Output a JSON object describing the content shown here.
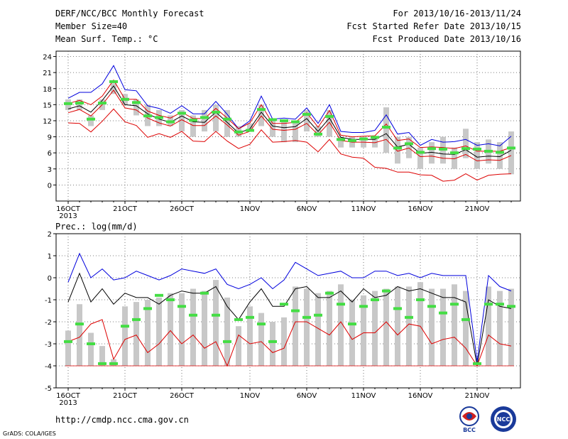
{
  "header": {
    "title": "DERF/NCC/BCC Monthly Forecast",
    "member_size": "Member Size=40",
    "variable": "Mean Surf. Temp.: °C",
    "period": "For 2013/10/16-2013/11/24",
    "fcst_started": "Fcst Started Refer Date 2013/10/15",
    "fcst_produced": "Fcst Produced Date 2013/10/16"
  },
  "footer": {
    "url": "http://cmdp.ncc.cma.gov.cn",
    "credit": "GrADS: COLA/IGES",
    "logo_left": "BCC",
    "logo_right": "NCC"
  },
  "colors": {
    "max_line": "#0000dd",
    "mean_line": "#000000",
    "min_line": "#dd0000",
    "spread_bar": "#c8c8c8",
    "observed_marker": "#44dd44",
    "grid": "#555555"
  },
  "chart_data": [
    {
      "type": "line",
      "title": "Mean Surf. Temp.: °C",
      "x": [
        "2013-10-16",
        "2013-10-17",
        "2013-10-18",
        "2013-10-19",
        "2013-10-20",
        "2013-10-21",
        "2013-10-22",
        "2013-10-23",
        "2013-10-24",
        "2013-10-25",
        "2013-10-26",
        "2013-10-27",
        "2013-10-28",
        "2013-10-29",
        "2013-10-30",
        "2013-10-31",
        "2013-11-01",
        "2013-11-02",
        "2013-11-03",
        "2013-11-04",
        "2013-11-05",
        "2013-11-06",
        "2013-11-07",
        "2013-11-08",
        "2013-11-09",
        "2013-11-10",
        "2013-11-11",
        "2013-11-12",
        "2013-11-13",
        "2013-11-14",
        "2013-11-15",
        "2013-11-16",
        "2013-11-17",
        "2013-11-18",
        "2013-11-19",
        "2013-11-20",
        "2013-11-21",
        "2013-11-22",
        "2013-11-23",
        "2013-11-24"
      ],
      "x_ticks": [
        {
          "label": "16OCT",
          "sublabel": "2013",
          "index": 0
        },
        {
          "label": "21OCT",
          "index": 5
        },
        {
          "label": "26OCT",
          "index": 10
        },
        {
          "label": "1NOV",
          "index": 16
        },
        {
          "label": "6NOV",
          "index": 21
        },
        {
          "label": "11NOV",
          "index": 26
        },
        {
          "label": "16NOV",
          "index": 31
        },
        {
          "label": "21NOV",
          "index": 36
        }
      ],
      "ylim": [
        -3,
        25
      ],
      "yticks": [
        0,
        3,
        6,
        9,
        12,
        15,
        18,
        21,
        24
      ],
      "grid": true,
      "series": [
        {
          "role": "max",
          "values": [
            16.2,
            17.3,
            17.3,
            18.9,
            22.3,
            17.8,
            17.6,
            14.8,
            14.3,
            13.4,
            14.8,
            13.3,
            13.3,
            15.6,
            13.2,
            10.5,
            12.0,
            16.6,
            12.3,
            12.5,
            12.3,
            14.4,
            11.5,
            15.0,
            10.0,
            9.8,
            9.8,
            10.2,
            13.1,
            9.5,
            9.8,
            7.4,
            8.5,
            8.0,
            8.1,
            8.5,
            7.4,
            7.7,
            7.3,
            9.1
          ]
        },
        {
          "role": "upper",
          "values": [
            15.2,
            15.8,
            15.0,
            16.6,
            19.6,
            16.0,
            16.0,
            13.8,
            13.0,
            12.5,
            13.6,
            12.4,
            12.4,
            14.3,
            12.5,
            10.5,
            11.6,
            15.0,
            11.5,
            11.5,
            11.7,
            13.5,
            10.8,
            13.9,
            9.3,
            9.0,
            9.1,
            9.2,
            11.4,
            8.3,
            8.6,
            7.0,
            7.1,
            7.0,
            6.8,
            7.3,
            6.3,
            6.3,
            6.3,
            7.0
          ]
        },
        {
          "role": "mean",
          "values": [
            14.2,
            14.8,
            13.6,
            15.8,
            18.5,
            15.0,
            14.8,
            13.3,
            12.3,
            11.7,
            12.9,
            11.8,
            11.7,
            13.6,
            11.7,
            9.7,
            10.5,
            13.6,
            11.0,
            10.7,
            10.9,
            12.4,
            10.0,
            12.5,
            8.9,
            8.5,
            8.5,
            8.5,
            9.6,
            7.1,
            7.6,
            5.9,
            6.1,
            5.8,
            5.7,
            6.6,
            5.2,
            5.4,
            5.3,
            6.5
          ]
        },
        {
          "role": "lower",
          "values": [
            13.5,
            14.1,
            12.9,
            15.0,
            17.7,
            14.4,
            14.0,
            12.5,
            11.6,
            11.0,
            12.2,
            11.1,
            11.1,
            12.9,
            11.2,
            9.3,
            10.0,
            12.9,
            10.4,
            10.2,
            10.4,
            11.5,
            9.4,
            11.7,
            8.3,
            8.0,
            8.0,
            7.9,
            8.5,
            6.3,
            6.9,
            5.3,
            5.4,
            5.0,
            4.9,
            5.7,
            4.5,
            4.7,
            4.6,
            5.5
          ]
        },
        {
          "role": "min",
          "values": [
            11.6,
            11.5,
            9.9,
            11.9,
            14.2,
            11.8,
            11.1,
            8.9,
            9.6,
            8.9,
            10.0,
            8.2,
            8.1,
            10.0,
            8.2,
            6.8,
            7.6,
            10.3,
            8.0,
            8.1,
            8.3,
            8.0,
            6.2,
            8.5,
            5.8,
            5.2,
            5.0,
            3.3,
            3.1,
            2.4,
            2.4,
            1.9,
            1.8,
            0.7,
            0.9,
            2.1,
            0.9,
            1.8,
            2.0,
            2.1
          ]
        }
      ],
      "spread_bars": {
        "low": [
          14.0,
          14.0,
          11.0,
          14.0,
          17.0,
          15.0,
          13.0,
          11.0,
          11.0,
          11.0,
          10.0,
          9.0,
          10.0,
          10.0,
          9.0,
          9.0,
          10.0,
          11.0,
          9.0,
          8.0,
          8.0,
          10.0,
          9.0,
          9.0,
          7.0,
          7.0,
          7.0,
          7.0,
          6.0,
          4.0,
          5.0,
          3.0,
          4.0,
          4.0,
          3.0,
          5.0,
          3.0,
          4.0,
          3.0,
          2.0
        ],
        "high": [
          16.0,
          16.0,
          13.0,
          16.0,
          19.0,
          17.0,
          16.0,
          15.0,
          14.0,
          13.0,
          14.0,
          13.0,
          14.0,
          15.0,
          14.0,
          11.0,
          11.5,
          15.0,
          12.0,
          12.0,
          12.0,
          14.0,
          11.0,
          14.0,
          9.0,
          9.0,
          9.0,
          9.0,
          14.5,
          9.0,
          9.0,
          7.0,
          8.0,
          9.0,
          7.0,
          10.5,
          8.0,
          8.5,
          8.0,
          10.0
        ]
      },
      "observed": [
        15.2,
        15.3,
        12.3,
        15.3,
        19.3,
        16.0,
        15.4,
        12.9,
        12.6,
        11.8,
        13.4,
        12.1,
        12.6,
        13.6,
        12.3,
        9.9,
        10.2,
        14.1,
        12.2,
        12.0,
        11.8,
        13.2,
        9.5,
        12.8,
        8.5,
        8.3,
        8.6,
        8.9,
        10.8,
        6.9,
        7.7,
        6.1,
        6.8,
        6.7,
        6.0,
        6.8,
        6.7,
        6.3,
        6.1,
        6.9
      ]
    },
    {
      "type": "line",
      "title": "Prec.: log(mm/d)",
      "x_ticks": [
        {
          "label": "16OCT",
          "sublabel": "2013",
          "index": 0
        },
        {
          "label": "21OCT",
          "index": 5
        },
        {
          "label": "26OCT",
          "index": 10
        },
        {
          "label": "1NOV",
          "index": 16
        },
        {
          "label": "6NOV",
          "index": 21
        },
        {
          "label": "11NOV",
          "index": 26
        },
        {
          "label": "16NOV",
          "index": 31
        },
        {
          "label": "21NOV",
          "index": 36
        }
      ],
      "ylim": [
        -5,
        2
      ],
      "yticks": [
        -5,
        -4,
        -3,
        -2,
        -1,
        0,
        1,
        2
      ],
      "grid": true,
      "series": [
        {
          "role": "max",
          "values": [
            -0.2,
            1.1,
            0.0,
            0.4,
            -0.1,
            0.0,
            0.3,
            0.1,
            -0.1,
            0.1,
            0.4,
            0.3,
            0.2,
            0.4,
            -0.3,
            -0.5,
            -0.3,
            0.0,
            -0.5,
            -0.1,
            0.7,
            0.4,
            0.1,
            0.2,
            0.3,
            0.0,
            0.0,
            0.3,
            0.3,
            0.1,
            0.2,
            0.0,
            0.2,
            0.1,
            0.1,
            0.1,
            -3.8,
            0.1,
            -0.4,
            -0.6
          ]
        },
        {
          "role": "mean",
          "values": [
            -1.1,
            0.2,
            -1.1,
            -0.5,
            -1.2,
            -0.7,
            -0.9,
            -0.9,
            -1.2,
            -0.8,
            -0.6,
            -0.7,
            -0.7,
            -0.4,
            -1.3,
            -1.9,
            -1.1,
            -0.5,
            -1.3,
            -1.3,
            -0.5,
            -0.4,
            -0.9,
            -0.9,
            -0.6,
            -1.1,
            -0.5,
            -0.9,
            -0.8,
            -0.4,
            -0.6,
            -0.5,
            -0.7,
            -0.9,
            -0.9,
            -1.1,
            -4.0,
            -1.0,
            -1.3,
            -1.4
          ]
        },
        {
          "role": "min",
          "values": [
            -2.9,
            -2.7,
            -2.1,
            -1.9,
            -3.7,
            -2.8,
            -2.6,
            -3.4,
            -3.0,
            -2.4,
            -3.0,
            -2.6,
            -3.2,
            -2.9,
            -4.0,
            -2.6,
            -3.0,
            -2.9,
            -3.4,
            -3.2,
            -2.0,
            -2.0,
            -2.3,
            -2.6,
            -2.0,
            -2.8,
            -2.5,
            -2.5,
            -2.0,
            -2.6,
            -2.1,
            -2.2,
            -3.0,
            -2.8,
            -2.7,
            -3.2,
            -4.0,
            -2.6,
            -3.0,
            -3.1
          ]
        }
      ],
      "baseline": -4,
      "spread_bars": {
        "low": [
          -4,
          -4,
          -4,
          -4,
          -4,
          -4,
          -4,
          -4,
          -4,
          -4,
          -4,
          -4,
          -4,
          -4,
          -4,
          -4,
          -4,
          -4,
          -4,
          -4,
          -4,
          -4,
          -4,
          -4,
          -4,
          -4,
          -4,
          -4,
          -4,
          -4,
          -4,
          -4,
          -4,
          -4,
          -4,
          -4,
          -4,
          -4,
          -4,
          -4
        ],
        "high": [
          -2.4,
          -1.2,
          -2.5,
          -3.1,
          -3.7,
          -1.3,
          -1.1,
          -1.0,
          -0.9,
          -0.7,
          -0.7,
          -0.5,
          -0.6,
          -0.1,
          -0.9,
          -2.2,
          -1.3,
          -1.6,
          -2.0,
          -1.8,
          -0.4,
          -0.5,
          -0.7,
          -0.6,
          -0.3,
          -1.0,
          -0.8,
          -0.6,
          -0.5,
          -0.4,
          -0.4,
          -0.2,
          -0.5,
          -0.5,
          -0.3,
          -0.6,
          -4.0,
          -0.4,
          -0.6,
          -0.5
        ]
      },
      "observed": [
        -2.9,
        -2.1,
        -3.0,
        -3.9,
        -3.9,
        -2.2,
        -1.9,
        -1.4,
        -0.8,
        -1.0,
        -1.3,
        -1.7,
        -0.7,
        -1.7,
        -2.9,
        -1.9,
        -1.8,
        -2.1,
        -2.9,
        -1.2,
        -1.5,
        -1.8,
        -1.7,
        -0.7,
        -1.2,
        -2.1,
        -1.3,
        -1.0,
        -0.6,
        -1.4,
        -1.8,
        -1.0,
        -1.3,
        -1.6,
        -1.2,
        -1.9,
        -3.9,
        -1.2,
        -1.2,
        -1.3
      ]
    }
  ]
}
